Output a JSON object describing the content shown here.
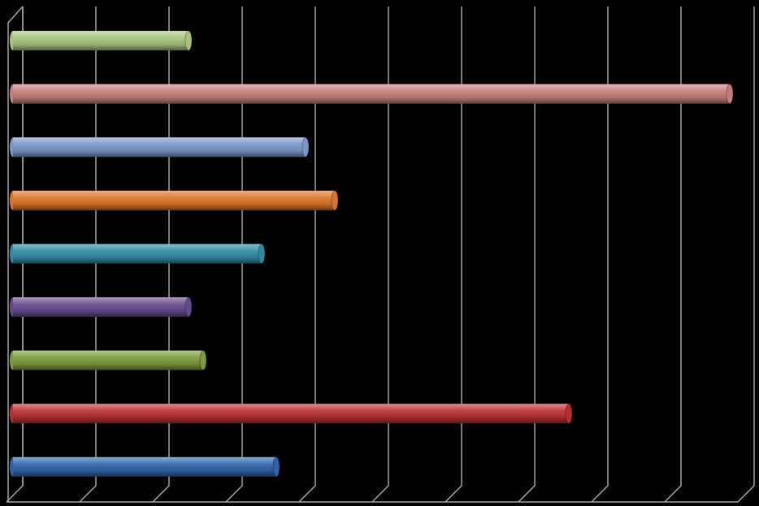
{
  "chart_data": {
    "type": "bar",
    "orientation": "horizontal",
    "categories": [
      null,
      null,
      null,
      null,
      null,
      null,
      null,
      null,
      null
    ],
    "values": [
      2.4,
      9.8,
      4.0,
      4.4,
      3.4,
      2.4,
      2.6,
      7.6,
      3.6
    ],
    "colors": [
      "#a6c27c",
      "#c47c7c",
      "#7a95c6",
      "#d9742a",
      "#2f8aa3",
      "#64498e",
      "#7b9a3a",
      "#b72f2f",
      "#2f62a8"
    ],
    "xlim": [
      0,
      10
    ],
    "xticks": [
      0,
      1,
      2,
      3,
      4,
      5,
      6,
      7,
      8,
      9,
      10
    ],
    "grid": true
  }
}
